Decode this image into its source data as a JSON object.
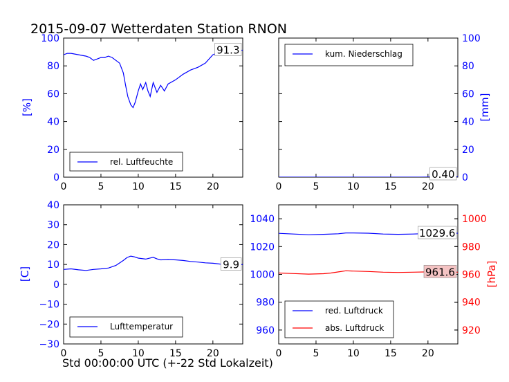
{
  "title": "2015-09-07 Wetterdaten Station RNON",
  "x_caption": "Std 00:00:00 UTC (+-22 Std Lokalzeit)",
  "colors": {
    "blue": "#0000ff",
    "red": "#ff0000",
    "value_box_fill": "#f4c3c3"
  },
  "chart_data": [
    {
      "type": "line",
      "ylabel": "[%]",
      "xlim": [
        0,
        24
      ],
      "ylim": [
        0,
        100
      ],
      "x_ticks": [
        0,
        5,
        10,
        15,
        20
      ],
      "y_ticks": [
        0,
        20,
        40,
        60,
        80,
        100
      ],
      "tick_color": "#0000ff",
      "legend_position": "lower-left",
      "last_value_label": "91.3",
      "series": [
        {
          "name": "rel. Luftfeuchte",
          "color": "#0000ff",
          "x": [
            0,
            0.5,
            1,
            2,
            3,
            3.5,
            4,
            4.5,
            5,
            5.5,
            6,
            6.5,
            7,
            7.5,
            8,
            8.3,
            8.6,
            9,
            9.3,
            9.6,
            10,
            10.3,
            10.6,
            11,
            11.3,
            11.6,
            12,
            12.5,
            13,
            13.5,
            14,
            15,
            16,
            17,
            18,
            19,
            20,
            21,
            22,
            23,
            24
          ],
          "y": [
            88,
            89,
            89,
            88,
            87,
            86,
            84,
            85,
            86,
            86,
            87,
            86,
            84,
            82,
            75,
            66,
            58,
            52,
            50,
            54,
            62,
            67,
            63,
            68,
            62,
            58,
            68,
            61,
            66,
            62,
            67,
            70,
            74,
            77,
            79,
            82,
            88,
            90,
            92,
            91,
            91.3
          ]
        }
      ]
    },
    {
      "type": "line",
      "ylabel": "[mm]",
      "xlim": [
        0,
        24
      ],
      "ylim": [
        0,
        100
      ],
      "x_ticks": [
        0,
        5,
        10,
        15,
        20
      ],
      "y_ticks": [
        0,
        20,
        40,
        60,
        80,
        100
      ],
      "tick_color": "#0000ff",
      "y_axis_side": "right",
      "legend_position": "upper-left",
      "last_value_label": "0.40",
      "series": [
        {
          "name": "kum. Niederschlag",
          "color": "#0000ff",
          "x": [
            0,
            5,
            10,
            15,
            19,
            20,
            21,
            22,
            24
          ],
          "y": [
            0,
            0,
            0,
            0,
            0,
            0.1,
            0.2,
            0.3,
            0.4
          ]
        }
      ]
    },
    {
      "type": "line",
      "ylabel": "[C]",
      "xlim": [
        0,
        24
      ],
      "ylim": [
        -30,
        40
      ],
      "x_ticks": [
        0,
        5,
        10,
        15,
        20
      ],
      "y_ticks": [
        -30,
        -20,
        -10,
        0,
        10,
        20,
        30,
        40
      ],
      "tick_color": "#0000ff",
      "legend_position": "lower-left",
      "last_value_label": "9.9",
      "series": [
        {
          "name": "Lufttemperatur",
          "color": "#0000ff",
          "x": [
            0,
            1,
            2,
            3,
            4,
            5,
            6,
            7,
            8,
            8.5,
            9,
            9.5,
            10,
            11,
            12,
            12.5,
            13,
            14,
            15,
            16,
            17,
            18,
            19,
            20,
            21,
            22,
            23,
            24
          ],
          "y": [
            7.5,
            7.8,
            7.3,
            7.0,
            7.5,
            7.8,
            8.2,
            9.5,
            12,
            13.5,
            14.2,
            13.8,
            13.2,
            12.7,
            13.6,
            12.8,
            12.3,
            12.5,
            12.3,
            12.0,
            11.5,
            11.2,
            10.8,
            10.6,
            10.2,
            10.0,
            9.9,
            9.9
          ]
        }
      ]
    },
    {
      "type": "line",
      "xlim": [
        0,
        24
      ],
      "ylim": [
        950,
        1050
      ],
      "ylim_right": [
        910,
        1010
      ],
      "ylabel_right": "[hPa]",
      "x_ticks": [
        0,
        5,
        10,
        15,
        20
      ],
      "y_ticks": [
        960,
        980,
        1000,
        1020,
        1040
      ],
      "y_ticks_right": [
        920,
        940,
        960,
        980,
        1000
      ],
      "tick_color": "#0000ff",
      "tick_color_right": "#ff0000",
      "legend_position": "lower-left",
      "series": [
        {
          "name": "red. Luftdruck",
          "color": "#0000ff",
          "axis": "left",
          "last_value_label": "1029.6",
          "x": [
            0,
            2,
            4,
            6,
            8,
            9,
            10,
            12,
            14,
            16,
            18,
            20,
            22,
            24
          ],
          "y": [
            1029.5,
            1029.0,
            1028.5,
            1028.8,
            1029.2,
            1029.8,
            1029.8,
            1029.6,
            1029.0,
            1028.8,
            1029.0,
            1029.4,
            1029.5,
            1029.6
          ]
        },
        {
          "name": "abs. Luftdruck",
          "color": "#ff0000",
          "axis": "right",
          "last_value_label": "961.6",
          "x": [
            0,
            2,
            4,
            6,
            7,
            8,
            9,
            10,
            12,
            14,
            16,
            18,
            20,
            22,
            24
          ],
          "y": [
            961.0,
            960.6,
            960.2,
            960.5,
            961.0,
            961.8,
            962.6,
            962.4,
            962.1,
            961.6,
            961.4,
            961.6,
            961.8,
            961.7,
            961.6
          ]
        }
      ]
    }
  ]
}
